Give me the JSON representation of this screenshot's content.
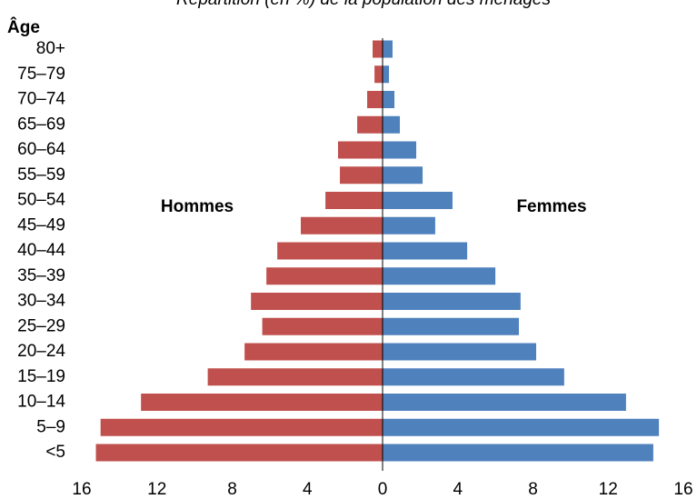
{
  "chart_data": {
    "type": "pyramid",
    "title": "Répartition (en %) de la population des ménages",
    "y_label": "Âge",
    "categories": [
      "80+",
      "75–79",
      "70–74",
      "65–69",
      "60–64",
      "55–59",
      "50–54",
      "45–49",
      "40–44",
      "35–39",
      "30–34",
      "25–29",
      "20–24",
      "15–19",
      "10–14",
      "5–9",
      "<5"
    ],
    "series": [
      {
        "name": "Hommes",
        "color": "#c0504d",
        "side": "left",
        "values": [
          0.53,
          0.43,
          0.82,
          1.35,
          2.37,
          2.27,
          3.04,
          4.35,
          5.6,
          6.18,
          7.0,
          6.4,
          7.34,
          9.3,
          12.85,
          15.0,
          15.25
        ]
      },
      {
        "name": "Femmes",
        "color": "#4f81bd",
        "side": "right",
        "values": [
          0.53,
          0.34,
          0.63,
          0.92,
          1.79,
          2.13,
          3.72,
          2.8,
          4.5,
          6.0,
          7.34,
          7.25,
          8.17,
          9.66,
          12.95,
          14.7,
          14.4
        ]
      }
    ],
    "xlim": [
      -16,
      16
    ],
    "xticks": [
      {
        "value": -16,
        "label": "16"
      },
      {
        "value": -12,
        "label": "12"
      },
      {
        "value": -8,
        "label": "8"
      },
      {
        "value": -4,
        "label": "4"
      },
      0,
      4,
      8,
      12,
      16
    ]
  }
}
